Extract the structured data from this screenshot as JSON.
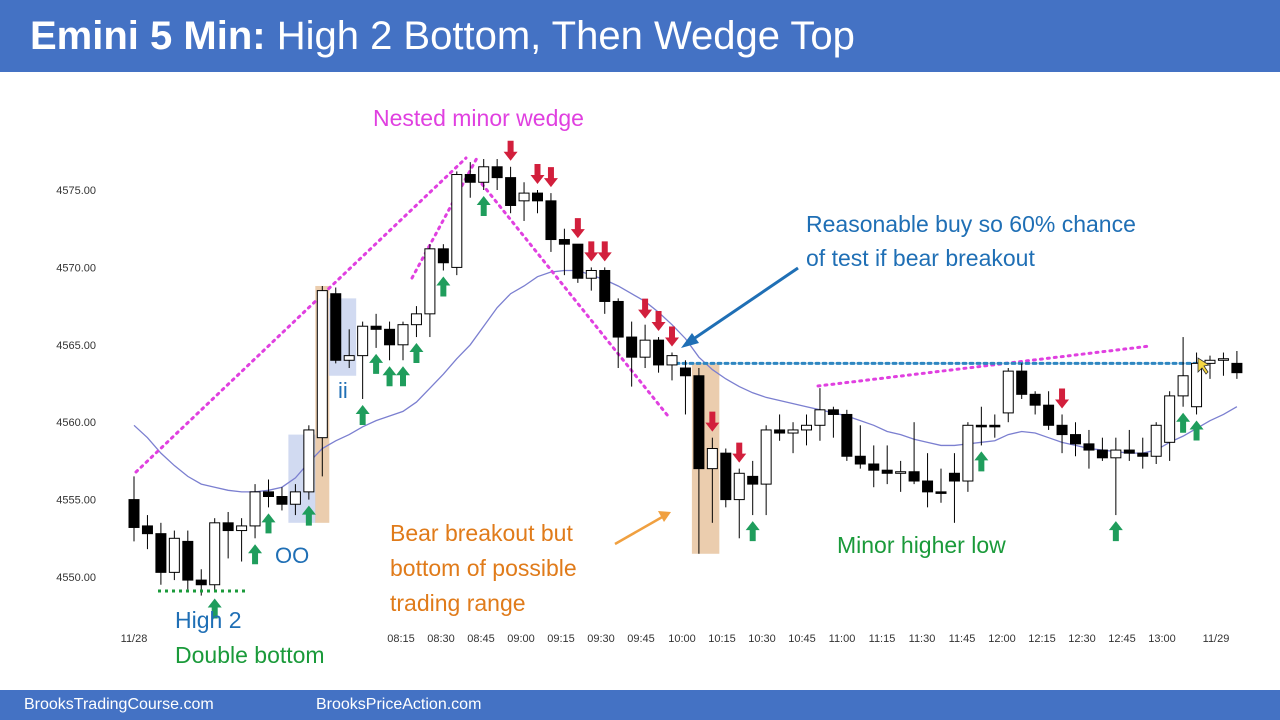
{
  "header": {
    "title_bold": "Emini 5 Min:",
    "title_rest": " High 2 Bottom, Then Wedge Top"
  },
  "footer": {
    "left": "BrooksTradingCourse.com",
    "right": "BrooksPriceAction.com"
  },
  "colors": {
    "header": "#4472c4",
    "bull_arrow": "#1f9d5c",
    "bear_arrow": "#d21f3c",
    "wedge_line": "#e040e0",
    "ma_line": "#7b7fd0",
    "level_line": "#2e86c1",
    "highlight_orange": "#e8c4a0",
    "highlight_blue": "#c9d3ef",
    "annotation_blue": "#1f6fb5",
    "annotation_green": "#1a9a3a",
    "annotation_orange": "#e07b1a"
  },
  "chart_data": {
    "type": "candlestick",
    "title": "Emini 5 Min: High 2 Bottom, Then Wedge Top",
    "ylim": [
      4547.5,
      4577.5
    ],
    "y_ticks": [
      "4575.00",
      "4570.00",
      "4565.00",
      "4560.00",
      "4555.00",
      "4550.00"
    ],
    "x_tick_labels": [
      "11/28",
      "08:15",
      "08:30",
      "08:45",
      "09:00",
      "09:15",
      "09:30",
      "09:45",
      "10:00",
      "10:15",
      "10:30",
      "10:45",
      "11:00",
      "11:15",
      "11:30",
      "11:45",
      "12:00",
      "12:15",
      "12:30",
      "12:45",
      "13:00",
      "11/29"
    ],
    "candles": [
      [
        4555.0,
        4556.5,
        4552.3,
        4553.2
      ],
      [
        4553.3,
        4554.0,
        4551.8,
        4552.8
      ],
      [
        4552.8,
        4553.5,
        4549.5,
        4550.3
      ],
      [
        4550.3,
        4553.0,
        4549.8,
        4552.5
      ],
      [
        4552.3,
        4553.0,
        4549.2,
        4549.8
      ],
      [
        4549.8,
        4550.5,
        4548.8,
        4549.5
      ],
      [
        4549.5,
        4553.8,
        4549.0,
        4553.5
      ],
      [
        4553.5,
        4554.2,
        4551.2,
        4553.0
      ],
      [
        4553.0,
        4553.8,
        4551.0,
        4553.3
      ],
      [
        4553.3,
        4556.0,
        4552.5,
        4555.5
      ],
      [
        4555.5,
        4556.3,
        4554.5,
        4555.2
      ],
      [
        4555.2,
        4555.8,
        4554.3,
        4554.7
      ],
      [
        4554.7,
        4556.0,
        4554.0,
        4555.5
      ],
      [
        4555.5,
        4559.8,
        4555.0,
        4559.5
      ],
      [
        4559.0,
        4568.8,
        4556.5,
        4568.5
      ],
      [
        4568.3,
        4568.7,
        4563.8,
        4564.0
      ],
      [
        4564.0,
        4566.0,
        4563.5,
        4564.3
      ],
      [
        4564.3,
        4566.5,
        4561.5,
        4566.2
      ],
      [
        4566.2,
        4567.0,
        4564.8,
        4566.0
      ],
      [
        4566.0,
        4566.5,
        4564.0,
        4565.0
      ],
      [
        4565.0,
        4566.5,
        4564.0,
        4566.3
      ],
      [
        4566.3,
        4567.5,
        4565.5,
        4567.0
      ],
      [
        4567.0,
        4571.5,
        4565.5,
        4571.2
      ],
      [
        4571.2,
        4571.5,
        4569.8,
        4570.3
      ],
      [
        4570.0,
        4576.2,
        4569.5,
        4576.0
      ],
      [
        4576.0,
        4576.8,
        4574.5,
        4575.5
      ],
      [
        4575.5,
        4577.0,
        4575.0,
        4576.5
      ],
      [
        4576.5,
        4577.0,
        4575.0,
        4575.8
      ],
      [
        4575.8,
        4576.5,
        4573.5,
        4574.0
      ],
      [
        4574.3,
        4575.5,
        4573.0,
        4574.8
      ],
      [
        4574.8,
        4575.0,
        4573.5,
        4574.3
      ],
      [
        4574.3,
        4574.8,
        4571.0,
        4571.8
      ],
      [
        4571.8,
        4572.5,
        4569.5,
        4571.5
      ],
      [
        4571.5,
        4571.5,
        4569.0,
        4569.3
      ],
      [
        4569.3,
        4570.0,
        4568.5,
        4569.8
      ],
      [
        4569.8,
        4570.0,
        4567.0,
        4567.8
      ],
      [
        4567.8,
        4568.0,
        4563.5,
        4565.5
      ],
      [
        4565.5,
        4566.5,
        4562.3,
        4564.2
      ],
      [
        4564.2,
        4566.3,
        4563.5,
        4565.3
      ],
      [
        4565.3,
        4565.5,
        4563.2,
        4563.7
      ],
      [
        4563.7,
        4564.5,
        4562.7,
        4564.3
      ],
      [
        4563.5,
        4564.0,
        4560.5,
        4563.0
      ],
      [
        4563.0,
        4563.5,
        4551.5,
        4557.0
      ],
      [
        4557.0,
        4559.0,
        4553.5,
        4558.3
      ],
      [
        4558.0,
        4558.3,
        4554.5,
        4555.0
      ],
      [
        4555.0,
        4557.0,
        4552.5,
        4556.7
      ],
      [
        4556.5,
        4557.5,
        4554.0,
        4556.0
      ],
      [
        4556.0,
        4559.8,
        4554.0,
        4559.5
      ],
      [
        4559.5,
        4560.5,
        4558.8,
        4559.3
      ],
      [
        4559.3,
        4560.0,
        4558.0,
        4559.5
      ],
      [
        4559.5,
        4560.5,
        4558.5,
        4559.8
      ],
      [
        4559.8,
        4562.2,
        4558.8,
        4560.8
      ],
      [
        4560.8,
        4561.0,
        4559.0,
        4560.5
      ],
      [
        4560.5,
        4560.8,
        4557.5,
        4557.8
      ],
      [
        4557.8,
        4559.8,
        4557.0,
        4557.3
      ],
      [
        4557.3,
        4558.5,
        4555.8,
        4556.9
      ],
      [
        4556.9,
        4558.5,
        4556.0,
        4556.7
      ],
      [
        4556.7,
        4557.5,
        4555.5,
        4556.8
      ],
      [
        4556.8,
        4560.0,
        4556.0,
        4556.2
      ],
      [
        4556.2,
        4558.0,
        4554.5,
        4555.5
      ],
      [
        4555.5,
        4557.0,
        4554.8,
        4555.4
      ],
      [
        4556.7,
        4558.0,
        4553.5,
        4556.2
      ],
      [
        4556.2,
        4560.0,
        4555.5,
        4559.8
      ],
      [
        4559.8,
        4561.0,
        4558.5,
        4559.7
      ],
      [
        4559.8,
        4560.5,
        4559.0,
        4559.7
      ],
      [
        4560.6,
        4563.5,
        4560.0,
        4563.3
      ],
      [
        4563.3,
        4563.8,
        4561.5,
        4561.8
      ],
      [
        4561.8,
        4562.0,
        4560.5,
        4561.1
      ],
      [
        4561.1,
        4562.0,
        4559.5,
        4559.8
      ],
      [
        4559.8,
        4560.5,
        4558.0,
        4559.2
      ],
      [
        4559.2,
        4560.0,
        4557.8,
        4558.6
      ],
      [
        4558.6,
        4559.5,
        4557.0,
        4558.2
      ],
      [
        4558.2,
        4559.0,
        4557.5,
        4557.7
      ],
      [
        4557.7,
        4559.0,
        4554.0,
        4558.2
      ],
      [
        4558.2,
        4559.5,
        4557.5,
        4558.0
      ],
      [
        4558.0,
        4559.0,
        4557.0,
        4557.8
      ],
      [
        4557.8,
        4560.0,
        4557.3,
        4559.8
      ],
      [
        4558.7,
        4562.0,
        4557.5,
        4561.7
      ],
      [
        4561.7,
        4565.5,
        4561.0,
        4563.0
      ],
      [
        4561.0,
        4564.5,
        4560.5,
        4563.8
      ],
      [
        4563.8,
        4564.3,
        4562.8,
        4564.0
      ],
      [
        4564.0,
        4564.5,
        4563.0,
        4564.1
      ],
      [
        4563.8,
        4564.6,
        4562.8,
        4563.2
      ]
    ],
    "moving_average": [
      4559.8,
      4559.0,
      4558.0,
      4557.2,
      4556.5,
      4556.0,
      4555.8,
      4555.6,
      4555.5,
      4555.5,
      4555.6,
      4555.8,
      4556.4,
      4557.4,
      4558.3,
      4558.8,
      4559.2,
      4559.7,
      4560.1,
      4560.4,
      4560.7,
      4561.3,
      4562.2,
      4563.1,
      4564.1,
      4565.0,
      4566.2,
      4567.4,
      4568.3,
      4568.8,
      4569.4,
      4569.7,
      4569.8,
      4569.8,
      4569.5,
      4569.2,
      4568.8,
      4568.3,
      4567.8,
      4567.1,
      4566.3,
      4565.4,
      4564.2,
      4563.4,
      4562.8,
      4562.3,
      4561.9,
      4561.6,
      4561.4,
      4561.2,
      4561.0,
      4560.8,
      4560.6,
      4560.4,
      4560.1,
      4559.8,
      4559.4,
      4559.2,
      4558.9,
      4558.7,
      4558.5,
      4558.5,
      4558.6,
      4558.7,
      4558.8,
      4559.2,
      4559.4,
      4559.3,
      4559.0,
      4558.7,
      4558.5,
      4558.3,
      4558.2,
      4558.1,
      4558.0,
      4558.0,
      4558.2,
      4558.7,
      4559.1,
      4559.6,
      4560.1,
      4560.5,
      4561.0
    ],
    "level_line": 4563.8,
    "bull_arrow_bars": [
      6,
      9,
      10,
      13,
      17,
      18,
      19,
      20,
      21,
      23,
      26,
      46,
      63,
      73,
      78,
      79
    ],
    "bear_arrow_bars": [
      28,
      30,
      31,
      33,
      34,
      35,
      38,
      39,
      40,
      43,
      45,
      69
    ],
    "annotations": [
      "Nested minor wedge",
      "Reasonable buy so 60% chance",
      "of test if bear breakout",
      "ii",
      "OO",
      "High 2",
      "Double bottom",
      "Bear breakout but",
      "bottom of possible",
      "trading range",
      "Minor higher low"
    ]
  }
}
